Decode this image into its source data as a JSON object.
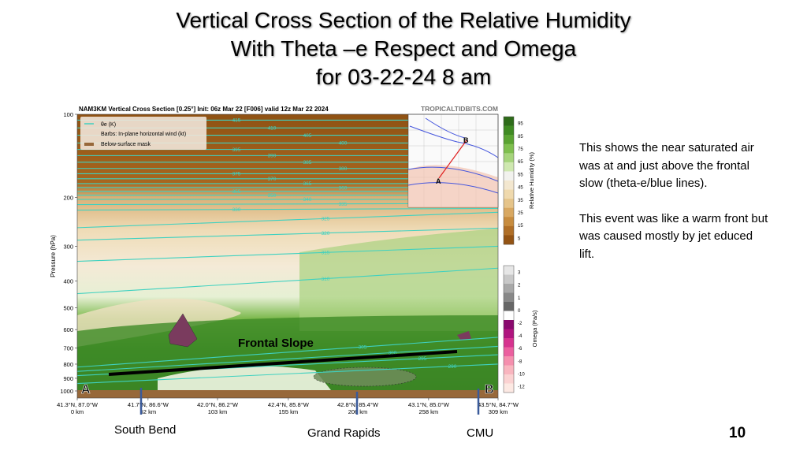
{
  "slide": {
    "title_lines": [
      "Vertical Cross Section of the Relative Humidity",
      "With Theta –e Respect  and Omega",
      "for 03-22-24  8 am"
    ],
    "notes": [
      "This shows the near saturated air was at and just above the frontal slow (theta-e/blue lines).",
      "This event was like a warm front but was caused mostly by jet educed lift."
    ],
    "locations": [
      "South Bend",
      "Grand Rapids",
      "CMU"
    ],
    "page_number": "10",
    "annotation": "Frontal Slope",
    "endpoint_a": "A",
    "endpoint_b": "B"
  },
  "chart_data": {
    "type": "heatmap",
    "title": "NAM3KM Vertical Cross Section [0.25°] Init: 06z Mar 22 [F006] valid 12z Mar 22 2024",
    "watermark": "TROPICALTIDBITS.COM",
    "ylabel": "Pressure (hPa)",
    "yticks": [
      100,
      200,
      300,
      400,
      500,
      600,
      700,
      800,
      900,
      1000
    ],
    "ylim": [
      1000,
      100
    ],
    "yscale": "log",
    "xlim": [
      0,
      309
    ],
    "xticks": [
      {
        "km": 0,
        "coord": "41.3°N, 87.0°W",
        "label": "0 km"
      },
      {
        "km": 52,
        "coord": "41.7°N, 86.6°W",
        "label": "52 km"
      },
      {
        "km": 103,
        "coord": "42.0°N, 86.2°W",
        "label": "103 km"
      },
      {
        "km": 155,
        "coord": "42.4°N, 85.8°W",
        "label": "155 km"
      },
      {
        "km": 206,
        "coord": "42.8°N, 85.4°W",
        "label": "206 km"
      },
      {
        "km": 258,
        "coord": "43.1°N, 85.0°W",
        "label": "258 km"
      },
      {
        "km": 309,
        "coord": "43.5°N, 84.7°W",
        "label": "309 km"
      }
    ],
    "legend": [
      "θe (K)",
      "Barbs: In-plane horizontal wind (kt)",
      "Below-surface mask"
    ],
    "rh_colorbar": {
      "label": "Relative Humidity (%)",
      "ticks": [
        95,
        85,
        75,
        65,
        55,
        45,
        35,
        25,
        15,
        5
      ],
      "colors": [
        "#2e6b1a",
        "#3f8a23",
        "#5aa332",
        "#7fbf4f",
        "#a6d47c",
        "#cfe8b0",
        "#f2f2ee",
        "#f3e7cf",
        "#efd9ad",
        "#e5c48a",
        "#d8a862",
        "#c78c3f",
        "#b06f27",
        "#945414"
      ]
    },
    "omega_colorbar": {
      "label": "Omega (Pa/s)",
      "ticks": [
        3,
        2,
        1,
        0,
        -2,
        -4,
        -6,
        -8,
        -10,
        -12
      ],
      "colors": [
        "#e6e6e6",
        "#c8c8c8",
        "#a8a8a8",
        "#888",
        "#666",
        "#ffffff",
        "#8a0a6e",
        "#b0157f",
        "#d6338f",
        "#eb5f9f",
        "#f58fae",
        "#f9b5bf",
        "#fbd2d2",
        "#fde9e3"
      ]
    },
    "theta_e_contours": [
      {
        "level": 415,
        "p_left": 105,
        "p_right": 105
      },
      {
        "level": 410,
        "p_left": 112,
        "p_right": 112
      },
      {
        "level": 405,
        "p_left": 119,
        "p_right": 119
      },
      {
        "level": 400,
        "p_left": 127,
        "p_right": 127
      },
      {
        "level": 395,
        "p_left": 134,
        "p_right": 134
      },
      {
        "level": 390,
        "p_left": 141,
        "p_right": 141
      },
      {
        "level": 385,
        "p_left": 149,
        "p_right": 149
      },
      {
        "level": 380,
        "p_left": 157,
        "p_right": 157
      },
      {
        "level": 375,
        "p_left": 164,
        "p_right": 164
      },
      {
        "level": 370,
        "p_left": 171,
        "p_right": 171
      },
      {
        "level": 365,
        "p_left": 178,
        "p_right": 178
      },
      {
        "level": 360,
        "p_left": 184,
        "p_right": 184
      },
      {
        "level": 355,
        "p_left": 190,
        "p_right": 190
      },
      {
        "level": 350,
        "p_left": 196,
        "p_right": 196
      },
      {
        "level": 340,
        "p_left": 203,
        "p_right": 203
      },
      {
        "level": 335,
        "p_left": 212,
        "p_right": 210
      },
      {
        "level": 330,
        "p_left": 222,
        "p_right": 219
      },
      {
        "level": 325,
        "p_left": 257,
        "p_right": 226
      },
      {
        "level": 320,
        "p_left": 285,
        "p_right": 258
      },
      {
        "level": 315,
        "p_left": 340,
        "p_right": 300
      },
      {
        "level": 310,
        "p_left": 445,
        "p_right": 360
      },
      {
        "level": 305,
        "p_left": 820,
        "p_right": 640
      },
      {
        "level": 300,
        "p_left": 850,
        "p_right": 690
      },
      {
        "level": 295,
        "p_left": 880,
        "p_right": 740
      },
      {
        "level": 290,
        "p_left": 940,
        "p_right": 800
      }
    ]
  }
}
